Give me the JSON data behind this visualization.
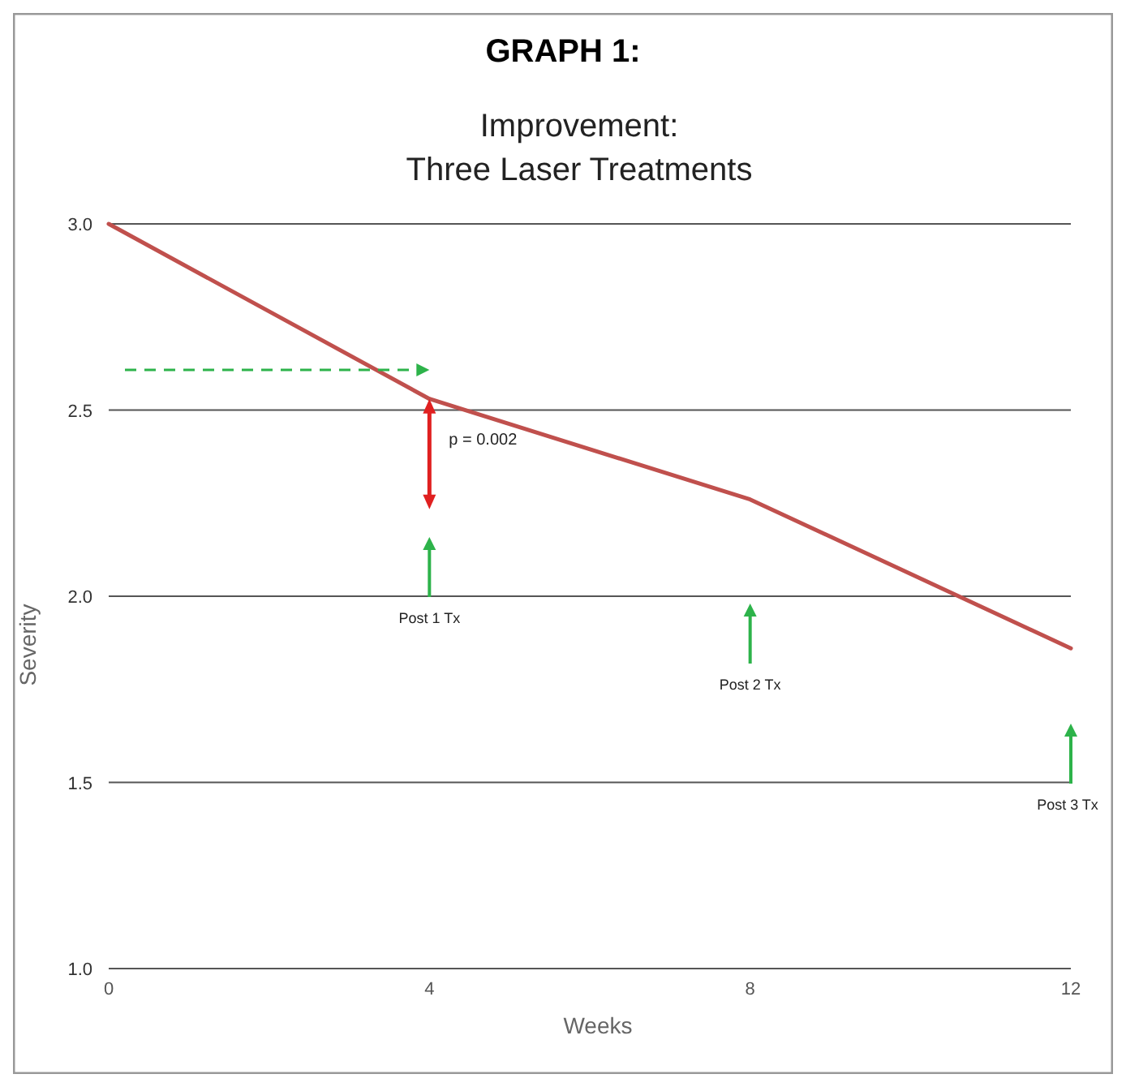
{
  "chart_data": {
    "type": "line",
    "title": "GRAPH 1:",
    "subtitle": "Improvement:\nThree Laser Treatments",
    "xlabel": "Weeks",
    "ylabel": "Severity",
    "x": [
      0,
      4,
      8,
      12
    ],
    "series": [
      {
        "color": "#c0504d",
        "values": [
          3.0,
          2.53,
          2.26,
          1.86
        ]
      }
    ],
    "xlim": [
      0,
      12
    ],
    "xticks": [
      0,
      4,
      8,
      12
    ],
    "ylim": [
      1,
      3
    ],
    "yticks": [
      {
        "value": 1,
        "label": "1.0"
      },
      {
        "value": 1.5,
        "label": "1.5"
      },
      {
        "value": 2,
        "label": "2.0"
      },
      {
        "value": 2.5,
        "label": "2.5"
      },
      {
        "value": 3,
        "label": "3.0"
      }
    ],
    "grid": "y",
    "marker": "none",
    "line_style": "solid",
    "annotations": [
      "p = 0.002",
      "Post 1 Tx",
      "Post 2 Tx",
      "Post 3 Tx"
    ]
  }
}
